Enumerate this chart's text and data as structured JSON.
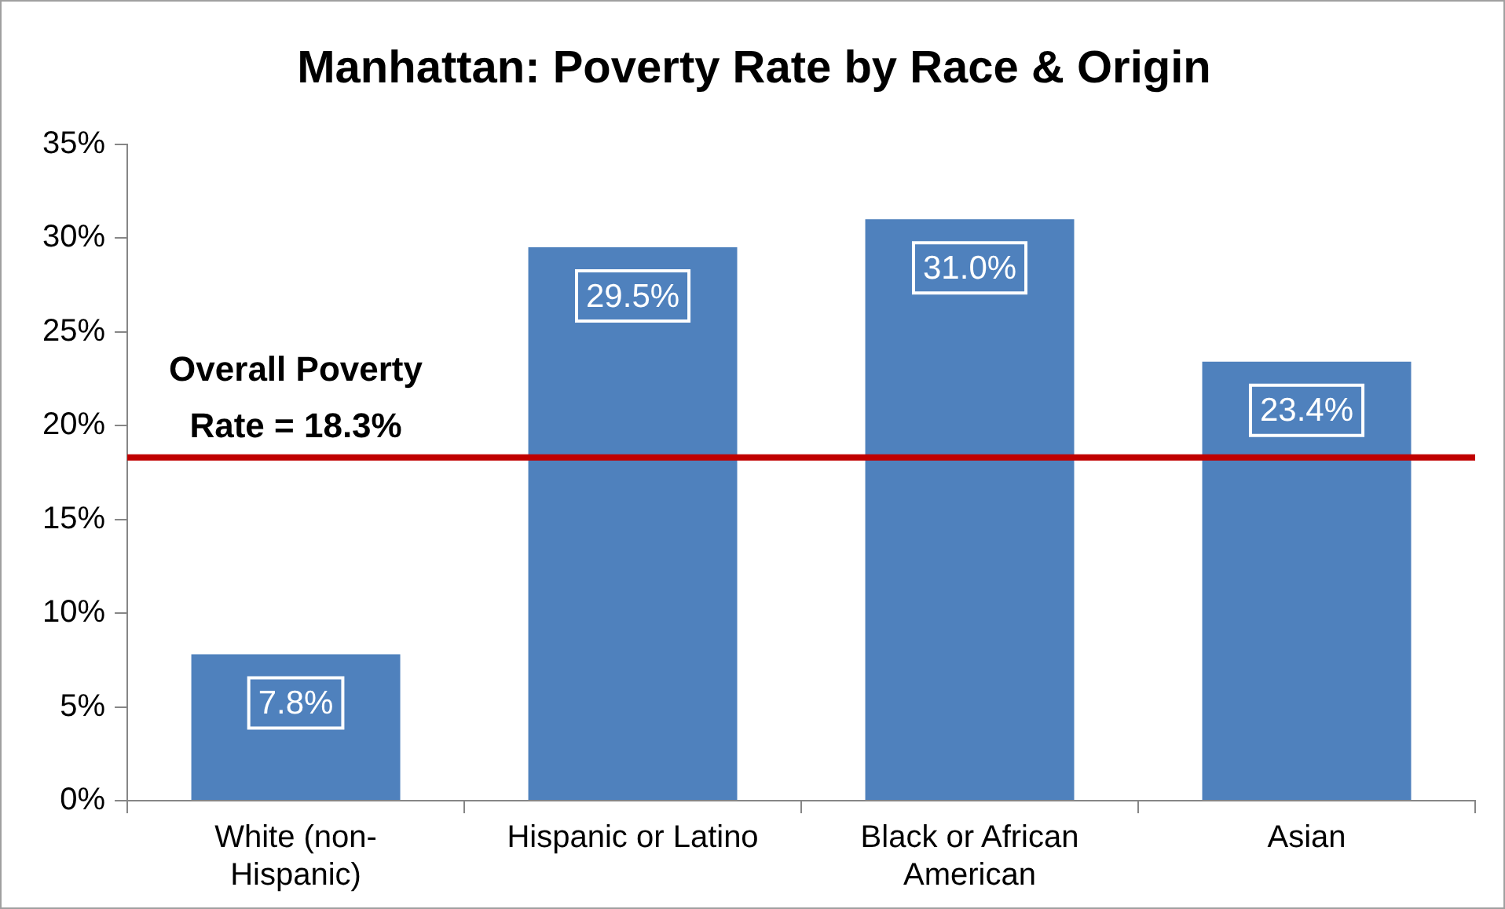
{
  "chart_data": {
    "type": "bar",
    "title": "Manhattan: Poverty Rate by Race & Origin",
    "categories": [
      "White (non-Hispanic)",
      "Hispanic or Latino",
      "Black or African American",
      "Asian"
    ],
    "values": [
      7.8,
      29.5,
      31.0,
      23.4
    ],
    "value_labels": [
      "7.8%",
      "29.5%",
      "31.0%",
      "23.4%"
    ],
    "color": "#4f81bd",
    "ylim": [
      0,
      35
    ],
    "yticks": [
      {
        "value": 0,
        "label": "0%"
      },
      {
        "value": 5,
        "label": "5%"
      },
      {
        "value": 10,
        "label": "10%"
      },
      {
        "value": 15,
        "label": "15%"
      },
      {
        "value": 20,
        "label": "20%"
      },
      {
        "value": 25,
        "label": "25%"
      },
      {
        "value": 30,
        "label": "30%"
      },
      {
        "value": 35,
        "label": "35%"
      }
    ],
    "ref_lines": [
      {
        "axis": "y",
        "value": 18.3,
        "label": "Overall Poverty Rate = 18.3%",
        "color": "#c00000"
      }
    ],
    "grid": false,
    "legend": false
  }
}
